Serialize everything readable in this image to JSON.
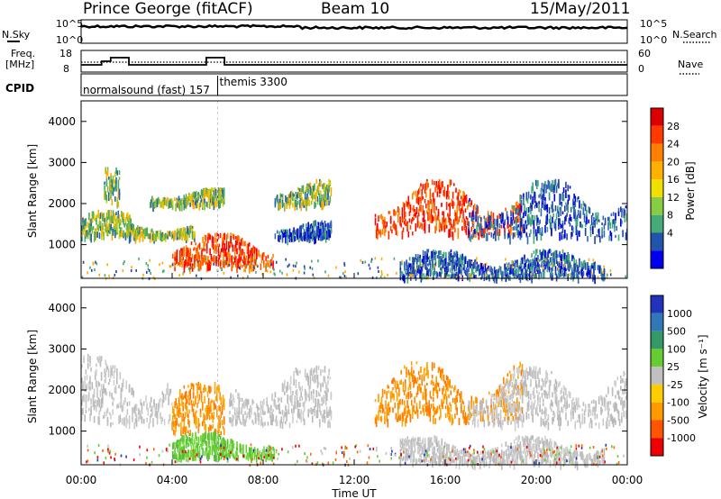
{
  "header": {
    "station": "Prince George (fitACF)",
    "beam": "Beam 10",
    "date": "15/May/2011"
  },
  "side_labels": {
    "nsky": "N.Sky",
    "nsearch": "N.Search",
    "freq_line1": "Freq.",
    "freq_line2": "[MHz]",
    "nave": "Nave",
    "cpid": "CPID"
  },
  "noise_panel": {
    "left_ticks": [
      "10^5",
      "10^0"
    ],
    "right_ticks": [
      "10^5",
      "10^0"
    ]
  },
  "freq_panel": {
    "left_ticks": [
      "18",
      "8"
    ],
    "right_ticks": [
      "60",
      "0"
    ]
  },
  "cpid_panel": {
    "modes": [
      {
        "label": "normalsound (fast) 157",
        "start_hour": 0,
        "end_hour": 6.0
      },
      {
        "label": "themis 3300",
        "start_hour": 6.0,
        "end_hour": 24
      }
    ]
  },
  "colorbars": {
    "power": {
      "title": "Power [dB]",
      "ticks": [
        "28",
        "24",
        "20",
        "16",
        "12",
        "8",
        "4"
      ],
      "colors": [
        "#dd0000",
        "#ff3a00",
        "#ff8000",
        "#ffb000",
        "#f0e000",
        "#88cc44",
        "#44aa77",
        "#2255aa",
        "#0000ee"
      ]
    },
    "velocity": {
      "title": "Velocity [m s⁻¹]",
      "ticks": [
        "1000",
        "500",
        "100",
        "25",
        "-25",
        "-100",
        "-500",
        "-1000"
      ],
      "colors": [
        "#2233bb",
        "#3377bb",
        "#339966",
        "#66cc33",
        "#c0c0c0",
        "#ffcc00",
        "#ff9900",
        "#ff5500",
        "#ee0000"
      ]
    }
  },
  "chart_data": [
    {
      "type": "heatmap",
      "name": "power",
      "ylabel": "Slant Range [km]",
      "ylim": [
        180,
        4500
      ],
      "xlim": [
        0,
        24
      ],
      "yticks": [
        "4000",
        "3000",
        "2000",
        "1000"
      ],
      "bands": [
        {
          "start": 0.0,
          "end": 2.2,
          "range_from": 1250,
          "range_to": 1850,
          "level": "medium"
        },
        {
          "start": 1.0,
          "end": 1.7,
          "range_from": 2000,
          "range_to": 2900,
          "level": "medium"
        },
        {
          "start": 2.0,
          "end": 5.0,
          "range_from": 1200,
          "range_to": 1600,
          "level": "medium"
        },
        {
          "start": 3.0,
          "end": 6.3,
          "range_from": 2000,
          "range_to": 2400,
          "level": "medium"
        },
        {
          "start": 4.0,
          "end": 8.5,
          "range_from": 500,
          "range_to": 1300,
          "level": "strong"
        },
        {
          "start": 8.5,
          "end": 11.0,
          "range_from": 1200,
          "range_to": 1600,
          "level": "weak"
        },
        {
          "start": 8.5,
          "end": 11.0,
          "range_from": 2000,
          "range_to": 2600,
          "level": "medium"
        },
        {
          "start": 12.9,
          "end": 19.4,
          "range_from": 1300,
          "range_to": 2600,
          "level": "strong"
        },
        {
          "start": 17.0,
          "end": 24.0,
          "range_from": 1200,
          "range_to": 2600,
          "level": "weak"
        },
        {
          "start": 14.0,
          "end": 23.0,
          "range_from": 250,
          "range_to": 900,
          "level": "weak"
        }
      ]
    },
    {
      "type": "heatmap",
      "name": "velocity",
      "ylabel": "Slant Range [km]",
      "ylim": [
        180,
        4500
      ],
      "xlim": [
        0,
        24
      ],
      "yticks": [
        "4000",
        "3000",
        "2000",
        "1000"
      ],
      "bands": [
        {
          "start": 0.0,
          "end": 4.0,
          "range_from": 1200,
          "range_to": 2900,
          "level": "ground"
        },
        {
          "start": 4.0,
          "end": 6.3,
          "range_from": 1000,
          "range_to": 2200,
          "level": "orange"
        },
        {
          "start": 4.0,
          "end": 8.5,
          "range_from": 400,
          "range_to": 1000,
          "level": "green"
        },
        {
          "start": 6.5,
          "end": 11.0,
          "range_from": 1200,
          "range_to": 2600,
          "level": "ground"
        },
        {
          "start": 12.9,
          "end": 19.4,
          "range_from": 1300,
          "range_to": 2700,
          "level": "orange"
        },
        {
          "start": 17.0,
          "end": 24.0,
          "range_from": 1200,
          "range_to": 2600,
          "level": "ground"
        },
        {
          "start": 14.0,
          "end": 23.0,
          "range_from": 250,
          "range_to": 900,
          "level": "ground"
        }
      ]
    }
  ],
  "xaxis": {
    "ticks": [
      "00:00",
      "04:00",
      "08:00",
      "12:00",
      "16:00",
      "20:00",
      "00:00"
    ],
    "label": "Time UT"
  }
}
